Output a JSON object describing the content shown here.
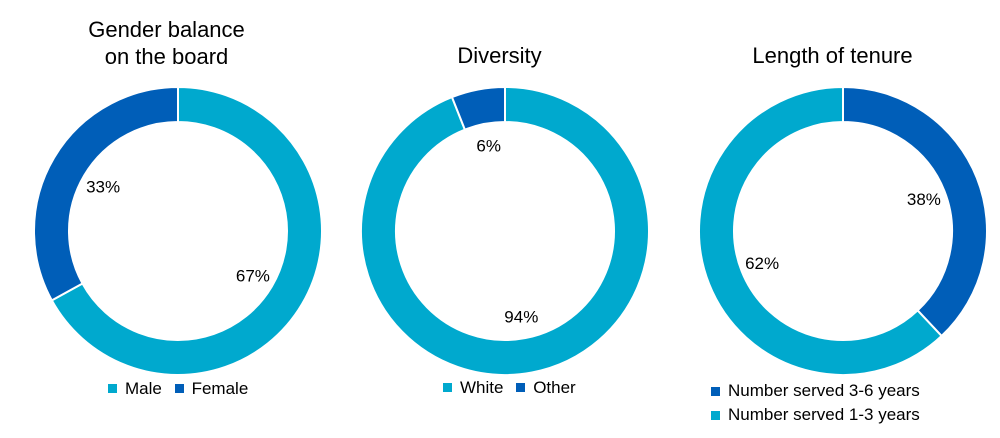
{
  "colors": {
    "light": "#00a9ce",
    "dark": "#005eb8"
  },
  "chart_data": [
    {
      "type": "pie",
      "variant": "donut",
      "title": "Gender balance\non the board",
      "series": [
        {
          "name": "Male",
          "value": 67,
          "label": "67%",
          "color": "#00a9ce"
        },
        {
          "name": "Female",
          "value": 33,
          "label": "33%",
          "color": "#005eb8"
        }
      ],
      "legend": {
        "placement": "bottom",
        "items": [
          "Male",
          "Female"
        ]
      }
    },
    {
      "type": "pie",
      "variant": "donut",
      "title": "Diversity",
      "series": [
        {
          "name": "White",
          "value": 94,
          "label": "94%",
          "color": "#00a9ce"
        },
        {
          "name": "Other",
          "value": 6,
          "label": "6%",
          "color": "#005eb8"
        }
      ],
      "legend": {
        "placement": "bottom",
        "items": [
          "White",
          "Other"
        ]
      }
    },
    {
      "type": "pie",
      "variant": "donut",
      "title": "Length of tenure",
      "series": [
        {
          "name": "Number served 3-6 years",
          "value": 38,
          "label": "38%",
          "color": "#005eb8"
        },
        {
          "name": "Number served 1-3 years",
          "value": 62,
          "label": "62%",
          "color": "#00a9ce"
        }
      ],
      "legend": {
        "placement": "bottom",
        "items": [
          "Number served 3-6 years",
          "Number served 1-3 years"
        ]
      }
    }
  ]
}
